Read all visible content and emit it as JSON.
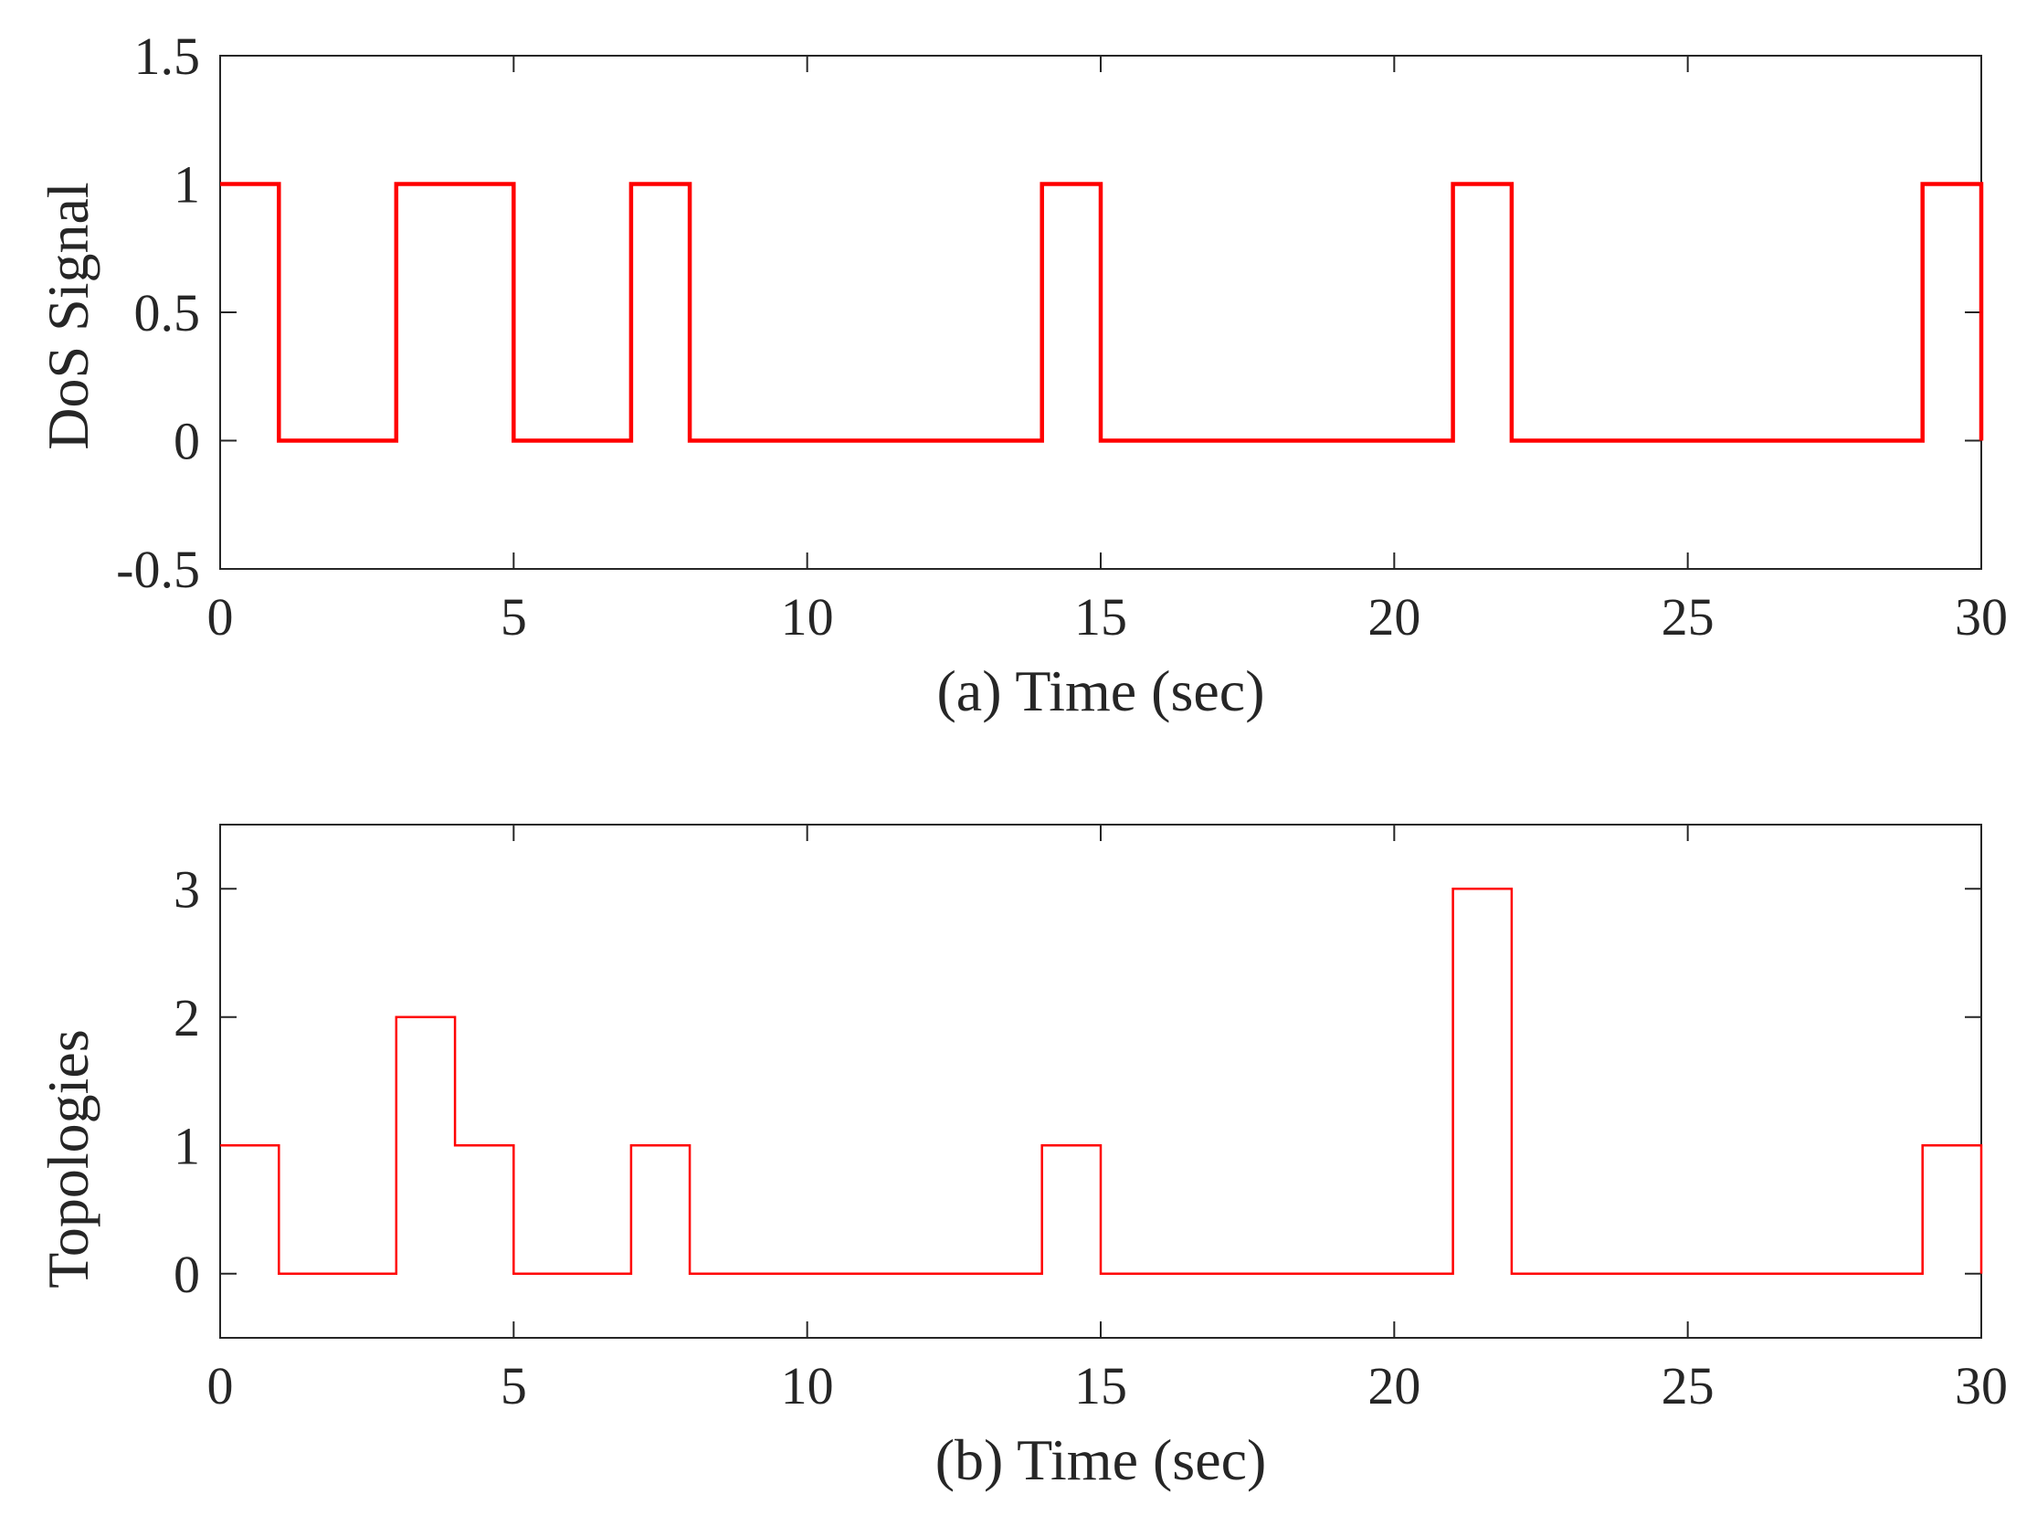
{
  "chart_data": [
    {
      "type": "line",
      "step": true,
      "xlabel": "(a) Time (sec)",
      "ylabel": "DoS Signal",
      "xlim": [
        0,
        30
      ],
      "ylim": [
        -0.5,
        1.5
      ],
      "xticks": [
        0,
        5,
        10,
        15,
        20,
        25,
        30
      ],
      "xtick_labels": [
        "0",
        "5",
        "10",
        "15",
        "20",
        "25",
        "30"
      ],
      "yticks": [
        -0.5,
        0,
        0.5,
        1,
        1.5
      ],
      "ytick_labels": [
        "-0.5",
        "0",
        "0.5",
        "1",
        "1.5"
      ],
      "grid": false,
      "series": [
        {
          "color": "#ff0000",
          "line_weight": "thick",
          "x": [
            0,
            1,
            1,
            3,
            3,
            5,
            5,
            7,
            7,
            8,
            8,
            14,
            14,
            15,
            15,
            21,
            21,
            22,
            22,
            29,
            29,
            30,
            30
          ],
          "y": [
            1,
            1,
            0,
            0,
            1,
            1,
            0,
            0,
            1,
            1,
            0,
            0,
            1,
            1,
            0,
            0,
            1,
            1,
            0,
            0,
            1,
            1,
            0
          ]
        }
      ]
    },
    {
      "type": "line",
      "step": true,
      "xlabel": "(b) Time (sec)",
      "ylabel": "Topologies",
      "xlim": [
        0,
        30
      ],
      "ylim": [
        -0.5,
        3.5
      ],
      "xticks": [
        0,
        5,
        10,
        15,
        20,
        25,
        30
      ],
      "xtick_labels": [
        "0",
        "5",
        "10",
        "15",
        "20",
        "25",
        "30"
      ],
      "yticks": [
        0,
        1,
        2,
        3
      ],
      "ytick_labels": [
        "0",
        "1",
        "2",
        "3"
      ],
      "grid": false,
      "series": [
        {
          "color": "#ff0000",
          "line_weight": "thin",
          "x": [
            0,
            1,
            1,
            3,
            3,
            4,
            4,
            5,
            5,
            7,
            7,
            8,
            8,
            14,
            14,
            15,
            15,
            21,
            21,
            22,
            22,
            29,
            29,
            30,
            30
          ],
          "y": [
            1,
            1,
            0,
            0,
            2,
            2,
            1,
            1,
            0,
            0,
            1,
            1,
            0,
            0,
            1,
            1,
            0,
            0,
            3,
            3,
            0,
            0,
            1,
            1,
            0
          ]
        }
      ]
    }
  ]
}
